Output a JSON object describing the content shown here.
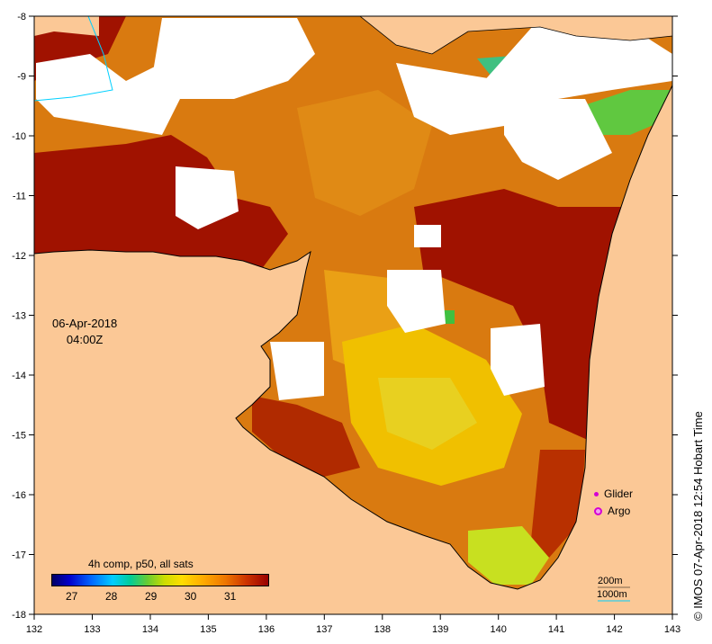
{
  "map": {
    "date": "06-Apr-2018",
    "time": "04:00Z",
    "credit": "© IMOS 07-Apr-2018 12:54 Hobart Time",
    "x_ticks": [
      "132",
      "133",
      "134",
      "135",
      "136",
      "137",
      "138",
      "139",
      "140",
      "141",
      "142",
      "143"
    ],
    "y_ticks": [
      "-8",
      "-9",
      "-10",
      "-11",
      "-12",
      "-13",
      "-14",
      "-15",
      "-16",
      "-17",
      "-18"
    ],
    "legend": {
      "glider": "Glider",
      "argo": "Argo"
    },
    "isobaths": {
      "shallow": "200m",
      "deep": "1000m"
    },
    "colorbar": {
      "title": "4h comp, p50, all sats",
      "ticks": [
        "27",
        "28",
        "29",
        "30",
        "31"
      ]
    },
    "colors": {
      "land": "#fbc896",
      "cloud": "#ffffff",
      "warm": "#a01200",
      "mid": "#e08010",
      "cool": "#f0c000",
      "coolest": "#c8e020",
      "green": "#40c040",
      "isobath_deep": "#00d0ff"
    }
  }
}
